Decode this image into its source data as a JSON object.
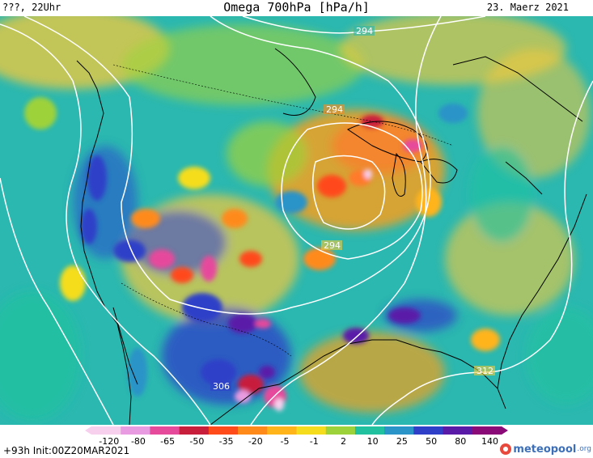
{
  "header": {
    "left": "???, 22Uhr",
    "title": "Omega 700hPa [hPa/h]",
    "right": "23. Maerz 2021"
  },
  "map": {
    "isolines": [
      "294",
      "294",
      "294",
      "306",
      "312"
    ]
  },
  "colorbar": {
    "labels": [
      "-120",
      "-80",
      "-65",
      "-50",
      "-35",
      "-20",
      "-5",
      "-1",
      "2",
      "10",
      "25",
      "50",
      "80",
      "140"
    ],
    "colors": [
      "#f7d0ee",
      "#e89be0",
      "#e64a9b",
      "#c81e3c",
      "#ff4a1a",
      "#ff8a1a",
      "#ffb41a",
      "#f5dd1e",
      "#9ed23a",
      "#21c1a0",
      "#2a93c8",
      "#2f3fc8",
      "#5a1aa8",
      "#8a0a78"
    ]
  },
  "footer": {
    "left": "+93h  Init:00Z20MAR2021",
    "logo": "meteopool",
    "logo_tld": ".org"
  },
  "colors": {
    "background_teal": "#2bb8b0",
    "isoline": "#ffffff",
    "coast": "#000000"
  }
}
